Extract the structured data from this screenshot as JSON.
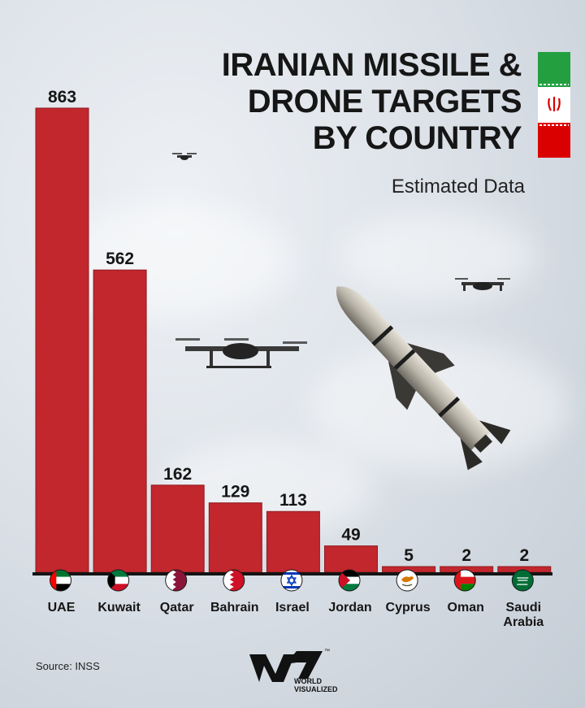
{
  "title_lines": [
    "IRANIAN MISSILE &",
    "DRONE TARGETS",
    "BY COUNTRY"
  ],
  "subtitle": "Estimated Data",
  "source": "Source: INSS",
  "logo": {
    "line1": "WORLD",
    "line2": "VISUALIZED",
    "tm": "™"
  },
  "colors": {
    "bar": "#c1272d",
    "bar_edge": "#8f1b20",
    "baseline": "#141414",
    "text": "#161616"
  },
  "chart_data": {
    "type": "bar",
    "title": "IRANIAN MISSILE & DRONE TARGETS BY COUNTRY",
    "subtitle": "Estimated Data",
    "categories": [
      "UAE",
      "Kuwait",
      "Qatar",
      "Bahrain",
      "Israel",
      "Jordan",
      "Cyprus",
      "Oman",
      "Saudi Arabia"
    ],
    "values": [
      863,
      562,
      162,
      129,
      113,
      49,
      5,
      2,
      2
    ],
    "flags": [
      "uae-flag-icon",
      "kuwait-flag-icon",
      "qatar-flag-icon",
      "bahrain-flag-icon",
      "israel-flag-icon",
      "jordan-flag-icon",
      "cyprus-flag-icon",
      "oman-flag-icon",
      "saudi-arabia-flag-icon"
    ],
    "xlabel": "",
    "ylabel": "",
    "ylim": [
      0,
      863
    ],
    "grid": false,
    "data_labels": true
  }
}
